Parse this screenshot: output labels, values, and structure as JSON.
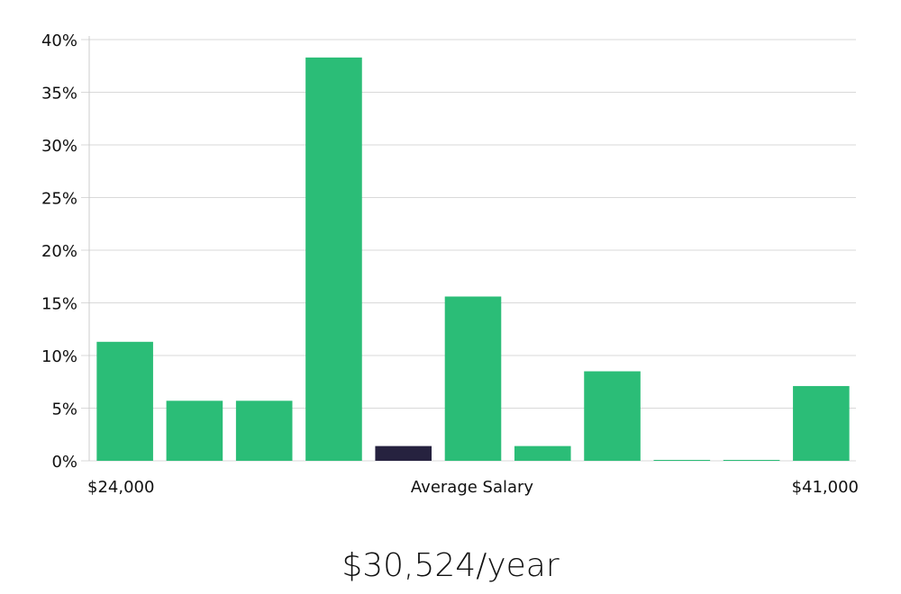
{
  "chart_data": {
    "type": "bar",
    "title": "",
    "xlabel": "Average Salary",
    "ylabel": "",
    "x_start_label": "$24,000",
    "x_end_label": "$41,000",
    "ylim": [
      0,
      40
    ],
    "yticks": [
      0,
      5,
      10,
      15,
      20,
      25,
      30,
      35,
      40
    ],
    "ytick_labels": [
      "0%",
      "5%",
      "10%",
      "15%",
      "20%",
      "25%",
      "30%",
      "35%",
      "40%"
    ],
    "values": [
      11.3,
      5.7,
      5.7,
      38.3,
      1.4,
      15.6,
      1.4,
      8.5,
      0,
      0,
      7.1
    ],
    "highlight_index": 4,
    "colors": {
      "bar": "#2bbd77",
      "highlight": "#26223f",
      "grid": "#d9d9d9"
    },
    "grid": true
  },
  "summary": {
    "average_text": "$30,524/year"
  }
}
